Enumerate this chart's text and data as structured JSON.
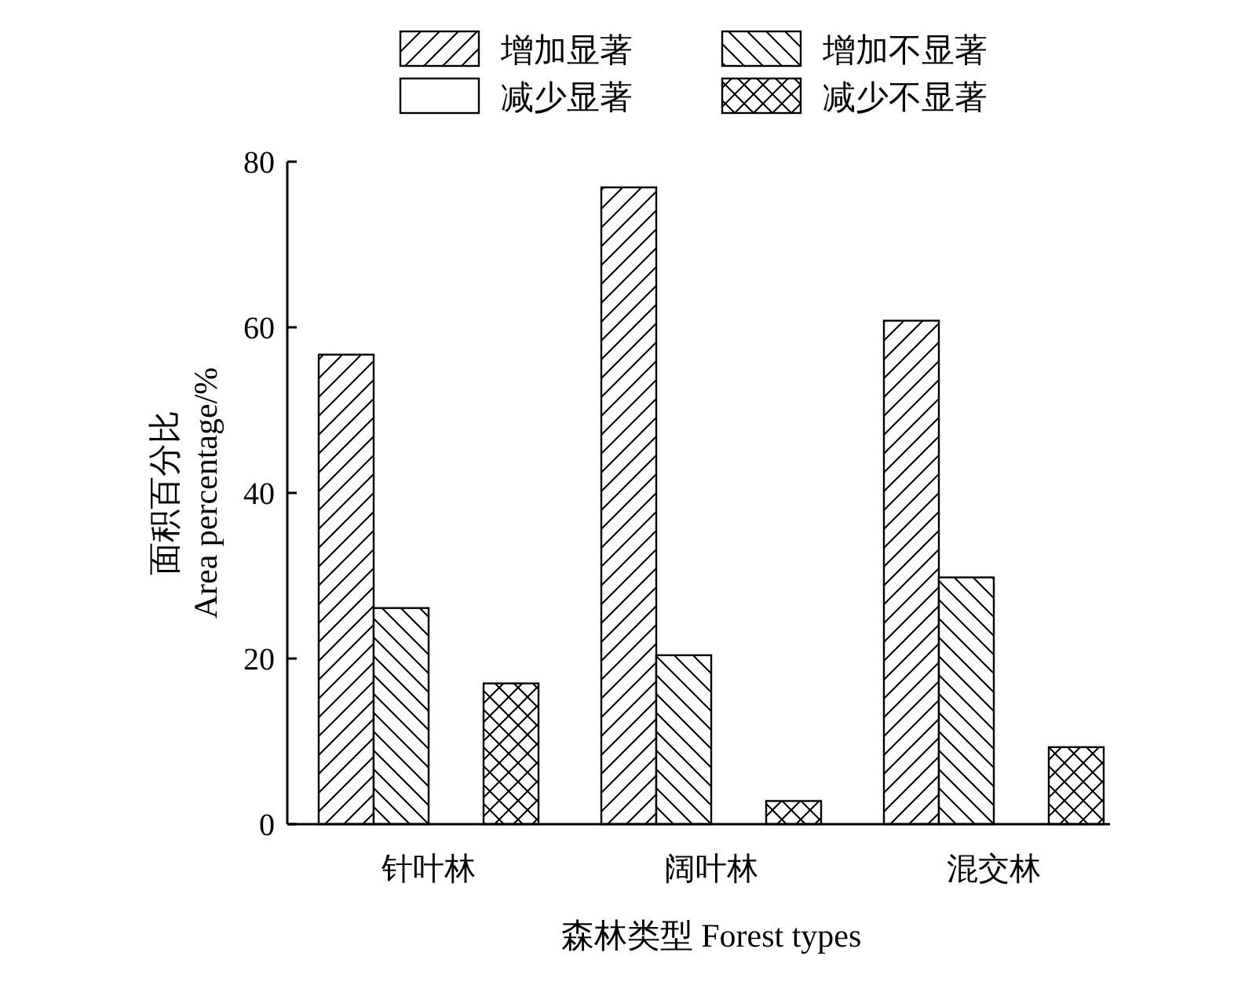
{
  "chart_data": {
    "type": "bar",
    "xlabel": "森林类型 Forest types",
    "ylabel": "面积百分比\nArea percentage/%",
    "categories": [
      "针叶林",
      "阔叶林",
      "混交林"
    ],
    "series": [
      {
        "name": "增加显著",
        "color": "#000000",
        "values": [
          56.7,
          76.9,
          60.8
        ]
      },
      {
        "name": "增加不显著",
        "color": "#000000",
        "values": [
          26.1,
          20.4,
          29.8
        ]
      },
      {
        "name": "减少显著",
        "color": "#000000",
        "values": [
          0,
          0,
          0
        ]
      },
      {
        "name": "减少不显著",
        "color": "#000000",
        "values": [
          17.0,
          2.8,
          9.3
        ]
      }
    ],
    "ylim": [
      0,
      80
    ],
    "yticks": [
      0,
      20,
      40,
      60,
      80
    ],
    "legend": "top",
    "grid": false
  }
}
